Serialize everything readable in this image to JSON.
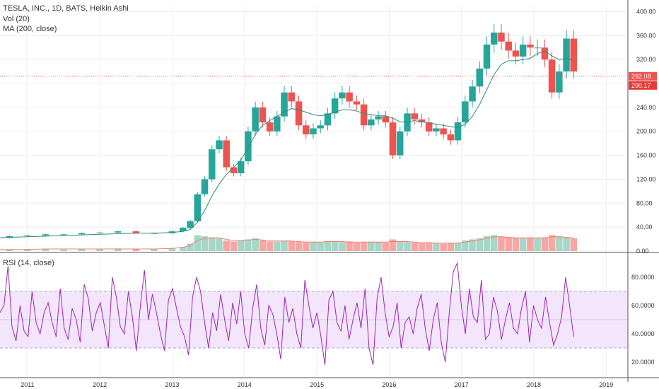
{
  "legend": {
    "title": "TESLA, INC., 1D, BATS, Heikin Ashi",
    "volume": "Vol (20)",
    "ma": "MA (200, close)",
    "rsi": "RSI (14, close)"
  },
  "colors": {
    "up": "#26a69a",
    "down": "#ef5350",
    "ma": "#2e8b78",
    "volume_up": "#a5d6c8",
    "volume_down": "#f7a6a4",
    "volume_ma": "#f08070",
    "price_line": "#ef5350",
    "rsi": "#9c27b0",
    "rsi_band": "#f3e5fb",
    "grid": "#eeeeee",
    "axis": "#555555"
  },
  "chart_data": [
    {
      "type": "candlestick",
      "name": "price",
      "ylim": [
        0,
        410
      ],
      "yticks": [
        "0.00",
        "40.00",
        "80.00",
        "120.00",
        "160.00",
        "200.00",
        "240.00",
        "280.00",
        "320.00",
        "360.00",
        "400.00"
      ],
      "price_line": {
        "value": 292.08,
        "label": "292.08"
      },
      "close_label": {
        "value": 290.17,
        "label": "290.17"
      },
      "x": [
        2010.5,
        2010.75,
        2011.0,
        2011.25,
        2011.5,
        2011.75,
        2012.0,
        2012.25,
        2012.5,
        2012.75,
        2013.0,
        2013.15,
        2013.25,
        2013.35,
        2013.45,
        2013.55,
        2013.65,
        2013.75,
        2013.85,
        2013.95,
        2014.05,
        2014.15,
        2014.25,
        2014.35,
        2014.45,
        2014.55,
        2014.65,
        2014.75,
        2014.85,
        2014.95,
        2015.05,
        2015.15,
        2015.25,
        2015.35,
        2015.45,
        2015.55,
        2015.65,
        2015.75,
        2015.85,
        2015.95,
        2016.05,
        2016.15,
        2016.25,
        2016.35,
        2016.45,
        2016.55,
        2016.65,
        2016.75,
        2016.85,
        2016.95,
        2017.05,
        2017.15,
        2017.25,
        2017.35,
        2017.45,
        2017.55,
        2017.65,
        2017.75,
        2017.85,
        2017.95,
        2018.05,
        2018.15,
        2018.25,
        2018.35,
        2018.45,
        2018.55
      ],
      "close": [
        22,
        25,
        26,
        28,
        28,
        30,
        31,
        33,
        30,
        30,
        33,
        39,
        50,
        95,
        120,
        170,
        185,
        140,
        130,
        150,
        200,
        240,
        215,
        200,
        225,
        265,
        250,
        210,
        195,
        205,
        210,
        230,
        255,
        265,
        250,
        245,
        210,
        220,
        225,
        215,
        160,
        200,
        230,
        220,
        215,
        200,
        205,
        195,
        185,
        215,
        250,
        275,
        305,
        345,
        365,
        350,
        335,
        325,
        345,
        340,
        340,
        320,
        265,
        300,
        355,
        300
      ],
      "open": [
        21,
        22,
        25,
        26,
        28,
        28,
        30,
        31,
        33,
        30,
        30,
        33,
        39,
        50,
        95,
        120,
        170,
        185,
        140,
        130,
        150,
        200,
        240,
        215,
        200,
        225,
        265,
        250,
        210,
        195,
        205,
        210,
        230,
        255,
        265,
        250,
        245,
        210,
        220,
        225,
        215,
        160,
        200,
        230,
        220,
        215,
        200,
        205,
        195,
        185,
        215,
        250,
        275,
        305,
        345,
        365,
        350,
        335,
        325,
        345,
        340,
        340,
        320,
        265,
        300,
        355
      ],
      "ma200": [
        22,
        23,
        24,
        25,
        26,
        27,
        28,
        29,
        30,
        30,
        31,
        33,
        36,
        48,
        68,
        92,
        112,
        128,
        140,
        152,
        172,
        195,
        210,
        218,
        225,
        232,
        238,
        236,
        232,
        228,
        226,
        228,
        232,
        236,
        236,
        234,
        230,
        228,
        226,
        226,
        222,
        216,
        216,
        218,
        216,
        214,
        212,
        210,
        208,
        206,
        212,
        225,
        245,
        270,
        295,
        312,
        318,
        318,
        320,
        322,
        330,
        334,
        326,
        320,
        322,
        318
      ]
    },
    {
      "type": "bar",
      "name": "volume",
      "ylim": [
        0,
        100
      ],
      "values": [
        3,
        3,
        4,
        4,
        3,
        4,
        4,
        5,
        4,
        4,
        6,
        8,
        14,
        30,
        28,
        26,
        24,
        20,
        18,
        20,
        22,
        24,
        20,
        18,
        18,
        20,
        19,
        17,
        16,
        18,
        17,
        19,
        18,
        17,
        18,
        16,
        17,
        18,
        17,
        16,
        22,
        19,
        17,
        16,
        15,
        16,
        15,
        14,
        15,
        16,
        20,
        22,
        24,
        28,
        30,
        27,
        26,
        25,
        24,
        26,
        25,
        26,
        30,
        28,
        26,
        24
      ],
      "ma": [
        3,
        3,
        3,
        4,
        4,
        4,
        4,
        4,
        4,
        4,
        5,
        7,
        11,
        20,
        24,
        25,
        25,
        22,
        20,
        20,
        21,
        22,
        21,
        19,
        19,
        19,
        19,
        18,
        17,
        17,
        17,
        18,
        18,
        18,
        17,
        17,
        17,
        17,
        17,
        17,
        18,
        18,
        18,
        17,
        16,
        16,
        15,
        15,
        15,
        15,
        17,
        19,
        21,
        24,
        27,
        27,
        26,
        25,
        25,
        25,
        25,
        25,
        27,
        27,
        26,
        25
      ]
    },
    {
      "type": "line",
      "name": "rsi",
      "ylim": [
        10,
        95
      ],
      "yticks": [
        "20.0000",
        "40.0000",
        "60.0000",
        "80.0000"
      ],
      "band": [
        30,
        70
      ],
      "midline": 50,
      "values": [
        55,
        60,
        88,
        45,
        35,
        60,
        42,
        38,
        70,
        48,
        40,
        55,
        62,
        48,
        38,
        72,
        44,
        36,
        58,
        50,
        34,
        75,
        65,
        42,
        55,
        62,
        46,
        30,
        80,
        66,
        45,
        40,
        70,
        52,
        28,
        60,
        85,
        50,
        68,
        55,
        40,
        28,
        64,
        72,
        58,
        45,
        38,
        25,
        66,
        80,
        70,
        48,
        30,
        55,
        42,
        68,
        50,
        35,
        62,
        47,
        70,
        40,
        30,
        58,
        75,
        44,
        32,
        60,
        54,
        40,
        22,
        66,
        48,
        58,
        40,
        30,
        78,
        60,
        44,
        55,
        38,
        18,
        64,
        70,
        48,
        42,
        60,
        36,
        50,
        62,
        44,
        72,
        30,
        18,
        65,
        80,
        55,
        38,
        45,
        62,
        30,
        48,
        52,
        40,
        58,
        68,
        44,
        28,
        50,
        62,
        34,
        20,
        55,
        84,
        90,
        60,
        40,
        72,
        52,
        48,
        78,
        36,
        40,
        66,
        56,
        36,
        50,
        62,
        44,
        40,
        58,
        70,
        34,
        60,
        50,
        44,
        66,
        48,
        32,
        40,
        52,
        80,
        60,
        38
      ]
    }
  ],
  "x_axis": {
    "ticks": [
      "2011",
      "2012",
      "2013",
      "2014",
      "2015",
      "2016",
      "2017",
      "2018",
      "2019"
    ],
    "xlim": [
      2010.62,
      2019.3
    ]
  }
}
